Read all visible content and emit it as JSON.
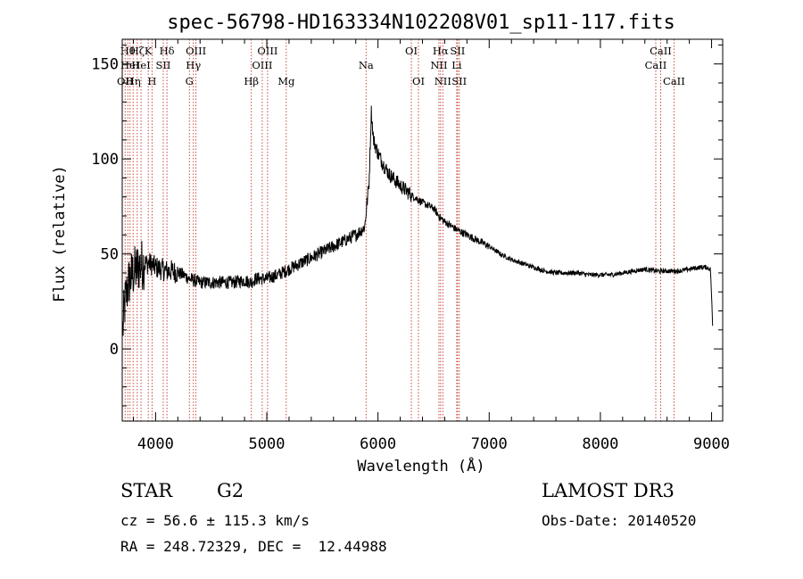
{
  "chart_data": {
    "type": "line",
    "title": "spec-56798-HD163334N102208V01_sp11-117.fits",
    "xlabel": "Wavelength (Å)",
    "ylabel": "Flux (relative)",
    "xlim": [
      3700,
      9100
    ],
    "ylim": [
      -38,
      163
    ],
    "x_ticks": [
      4000,
      5000,
      6000,
      7000,
      8000,
      9000
    ],
    "y_ticks": [
      0,
      50,
      100,
      150
    ],
    "x_minor_step": 200,
    "y_minor_step": 10,
    "grid": false,
    "legend": "none",
    "line_color": "#000000",
    "spectral_line_color": "#c0392b",
    "series": [
      {
        "x": [
          3705,
          3720,
          3735,
          3750,
          3765,
          3780,
          3800,
          3830,
          3860,
          3900,
          3950,
          4000,
          4050,
          4100,
          4150,
          4200,
          4250,
          4300,
          4350,
          4400,
          4500,
          4600,
          4700,
          4800,
          4860,
          4900,
          5000,
          5100,
          5200,
          5300,
          5400,
          5500,
          5600,
          5700,
          5800,
          5880,
          5920,
          5940,
          5960,
          6000,
          6050,
          6100,
          6200,
          6300,
          6400,
          6500,
          6560,
          6600,
          6700,
          6800,
          6900,
          7000,
          7100,
          7200,
          7300,
          7400,
          7500,
          7600,
          7700,
          7800,
          7900,
          8000,
          8100,
          8200,
          8300,
          8400,
          8500,
          8600,
          8700,
          8800,
          8900,
          8950,
          8990,
          9005,
          9010
        ],
        "y": [
          10,
          22,
          28,
          33,
          36,
          38,
          40,
          42,
          44,
          45,
          45,
          43,
          42,
          41,
          41,
          40,
          39,
          37,
          36,
          35,
          35,
          35,
          35,
          36,
          35,
          37,
          37,
          39,
          42,
          45,
          48,
          51,
          54,
          57,
          60,
          64,
          88,
          125,
          110,
          103,
          97,
          92,
          86,
          81,
          77,
          74,
          69,
          67,
          63,
          60,
          57,
          54,
          50,
          47,
          45,
          43,
          41,
          40,
          40,
          40,
          39,
          39,
          39,
          40,
          41,
          42,
          41,
          41,
          41,
          42,
          43,
          43,
          42,
          20,
          10
        ]
      }
    ],
    "spectral_lines": [
      {
        "wave": 3726,
        "label": "OII",
        "row": 3
      },
      {
        "wave": 3750,
        "label": "Hθ",
        "row": 1
      },
      {
        "wave": 3770,
        "label": "HeI",
        "row": 2
      },
      {
        "wave": 3798,
        "label": "Hη",
        "row": 3
      },
      {
        "wave": 3835,
        "label": "Hζ",
        "row": 1
      },
      {
        "wave": 3869,
        "label": "HeI",
        "row": 2
      },
      {
        "wave": 3934,
        "label": "K",
        "row": 1
      },
      {
        "wave": 3968,
        "label": "H",
        "row": 3
      },
      {
        "wave": 4069,
        "label": "SII",
        "row": 2
      },
      {
        "wave": 4102,
        "label": "Hδ",
        "row": 1
      },
      {
        "wave": 4304,
        "label": "G",
        "row": 3
      },
      {
        "wave": 4340,
        "label": "Hγ",
        "row": 2
      },
      {
        "wave": 4363,
        "label": "OIII",
        "row": 1
      },
      {
        "wave": 4861,
        "label": "Hβ",
        "row": 3
      },
      {
        "wave": 4959,
        "label": "OIII",
        "row": 2
      },
      {
        "wave": 5007,
        "label": "OIII",
        "row": 1
      },
      {
        "wave": 5175,
        "label": "Mg",
        "row": 3
      },
      {
        "wave": 5893,
        "label": "Na",
        "row": 2
      },
      {
        "wave": 6300,
        "label": "OI",
        "row": 1
      },
      {
        "wave": 6364,
        "label": "OI",
        "row": 3
      },
      {
        "wave": 6548,
        "label": "NII",
        "row": 2
      },
      {
        "wave": 6563,
        "label": "Hα",
        "row": 1
      },
      {
        "wave": 6583,
        "label": "NII",
        "row": 3
      },
      {
        "wave": 6708,
        "label": "Li",
        "row": 2
      },
      {
        "wave": 6716,
        "label": "SII",
        "row": 1
      },
      {
        "wave": 6731,
        "label": "SII",
        "row": 3
      },
      {
        "wave": 8498,
        "label": "CaII",
        "row": 2
      },
      {
        "wave": 8542,
        "label": "CaII",
        "row": 1
      },
      {
        "wave": 8662,
        "label": "CaII",
        "row": 3
      }
    ]
  },
  "info": {
    "object_class": "STAR",
    "subclass": "G2",
    "survey": "LAMOST DR3",
    "cz": "cz = 56.6 ± 115.3 km/s",
    "obs_date": "Obs-Date: 20140520",
    "coords": "RA = 248.72329, DEC =  12.44988"
  }
}
